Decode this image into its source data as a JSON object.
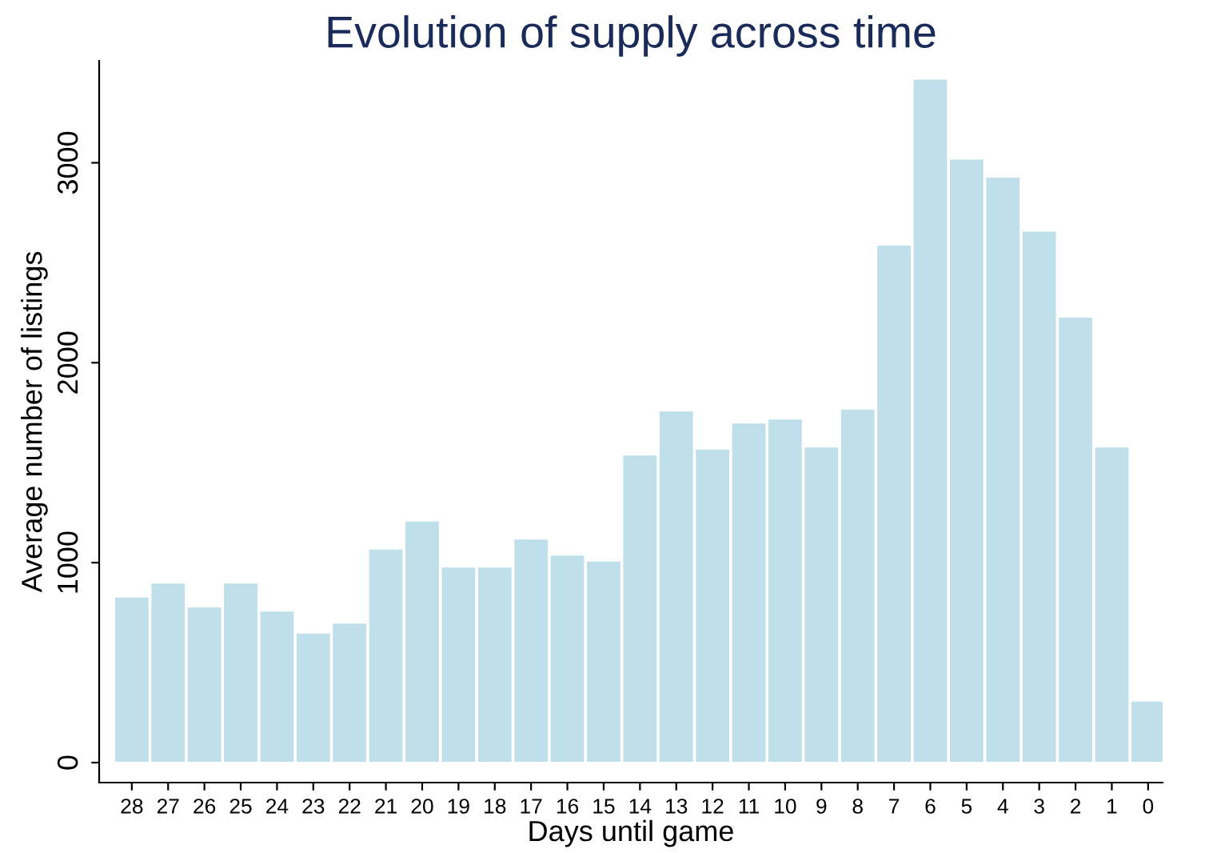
{
  "chart_data": {
    "type": "bar",
    "title": "Evolution of supply across time",
    "xlabel": "Days until game",
    "ylabel": "Average number of listings",
    "categories": [
      "28",
      "27",
      "26",
      "25",
      "24",
      "23",
      "22",
      "21",
      "20",
      "19",
      "18",
      "17",
      "16",
      "15",
      "14",
      "13",
      "12",
      "11",
      "10",
      "9",
      "8",
      "7",
      "6",
      "5",
      "4",
      "3",
      "2",
      "1",
      "0"
    ],
    "values": [
      830,
      900,
      780,
      900,
      760,
      650,
      700,
      1070,
      1210,
      980,
      980,
      1120,
      1040,
      1010,
      1540,
      1760,
      1570,
      1700,
      1720,
      1580,
      1770,
      2590,
      3420,
      3020,
      2930,
      2660,
      2230,
      1580,
      310
    ],
    "color": "#bfe0ea",
    "ylim": [
      -100,
      3510
    ],
    "yticks": [
      0,
      1000,
      2000,
      3000
    ],
    "grid": false,
    "legend": false
  }
}
